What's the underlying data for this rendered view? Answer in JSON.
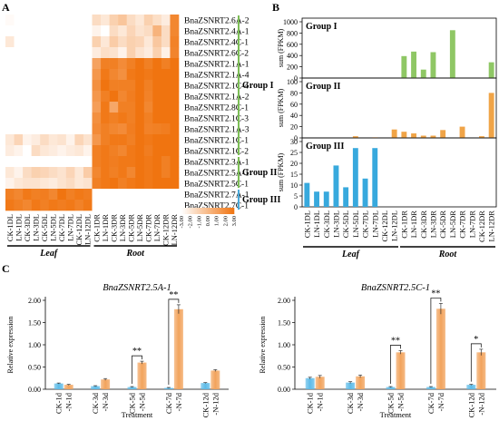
{
  "panel_labels": {
    "a": "A",
    "b": "B",
    "c": "C"
  },
  "chart_data": [
    {
      "type": "heatmap",
      "panel": "A",
      "columns": [
        "CK-1DL",
        "LN-1DL",
        "CK-3DL",
        "LN-3DL",
        "CK-5DL",
        "LN-5DL",
        "CK-7DL",
        "LN-7DL",
        "CK-12DL",
        "LN-12DL",
        "CK-1DR",
        "LN-1DR",
        "CK-3DR",
        "LN-3DR",
        "CK-5DR",
        "LN-5DR",
        "CK-7DR",
        "LN-7DR",
        "CK-12DR",
        "LN-12DR"
      ],
      "rows": [
        "BnaZSNRT2.6A-2",
        "BnaZSNRT2.4A-1",
        "BnaZSNRT2.4C-1",
        "BnaZSNRT2.6C-2",
        "BnaZSNRT2.1A-1",
        "BnaZSNRT2.1A-4",
        "BnaZSNRT2.1C-4",
        "BnaZSNRT2.1A-2",
        "BnaZSNRT2.8C-1",
        "BnaZSNRT2.1C-3",
        "BnaZSNRT2.1A-3",
        "BnaZSNRT2.1C-1",
        "BnaZSNRT2.1C-2",
        "BnaZSNRT2.3A-1",
        "BnaZSNRT2.5A-1",
        "BnaZSNRT2.5C-1",
        "BnaZSNRT2.7A-1",
        "BnaZSNRT2.7C-1"
      ],
      "values": [
        [
          -2.8,
          -3,
          -3,
          -3,
          -3,
          -3,
          -3,
          -3,
          -3,
          -3,
          -1.5,
          -2,
          -1,
          -0.5,
          -1.5,
          -2,
          -1,
          -1.6,
          -2.2,
          2.2
        ],
        [
          -3,
          -3,
          -3,
          -3,
          -3,
          -3,
          -3,
          -3,
          -3,
          -3,
          -2.5,
          -3,
          -1.5,
          -2,
          -1.2,
          -1.8,
          -1.5,
          0.3,
          -1.5,
          2.2
        ],
        [
          -2,
          -3,
          -3,
          -3,
          -3,
          -3,
          -3,
          -3,
          -3,
          -3,
          -1,
          -2,
          -0.8,
          -1.5,
          -1,
          -1.2,
          -2,
          -0.6,
          -1.5,
          2.4
        ],
        [
          -3,
          -3,
          -3,
          -3,
          -3,
          -3,
          -3,
          -3,
          -3,
          -3,
          -2.2,
          -1.6,
          -1.8,
          -2.5,
          -1,
          -1.8,
          -2.2,
          -1,
          -2.4,
          2.3
        ],
        [
          -3,
          -3,
          -3,
          -3,
          -3,
          -3,
          -3,
          -3,
          -3,
          -3,
          1,
          2.5,
          2.5,
          2,
          2.5,
          3,
          2.5,
          3,
          2.5,
          3
        ],
        [
          -3,
          -3,
          -3,
          -3,
          -3,
          -3,
          -3,
          -3,
          -3,
          -3,
          1.5,
          2.8,
          2.2,
          1.8,
          2.8,
          3,
          2.8,
          3,
          3,
          3
        ],
        [
          -3,
          -3,
          -3,
          -3,
          -3,
          -3,
          -3,
          -3,
          -3,
          -3,
          1.8,
          3,
          2.5,
          2.5,
          2.5,
          3,
          2.5,
          3,
          3,
          3
        ],
        [
          -3,
          -3,
          -3,
          -3,
          -3,
          -3,
          -3,
          -3,
          -3,
          -3,
          1.5,
          2.5,
          3,
          2.2,
          2.6,
          3,
          2.4,
          3,
          3,
          3
        ],
        [
          -3,
          -3,
          -3,
          -3,
          -3,
          -3,
          -3,
          -3,
          -3,
          -3,
          1.2,
          2.8,
          0.8,
          2.5,
          2.5,
          3,
          2.2,
          3,
          3,
          3
        ],
        [
          -3,
          -3,
          -3,
          -3,
          -3,
          -3,
          -3,
          -3,
          -3,
          -3,
          1.8,
          2.8,
          2.5,
          2.8,
          2.5,
          3,
          2.5,
          3,
          3,
          3
        ],
        [
          -3,
          -3,
          -3,
          -3,
          -3,
          -3,
          -3,
          -3,
          -3,
          -3,
          2,
          2.5,
          2.2,
          2,
          2.6,
          3,
          2.4,
          2.5,
          2.6,
          3
        ],
        [
          -2,
          -1.2,
          -2.5,
          -2.2,
          -1.5,
          -2,
          -1.8,
          -2.5,
          -1.2,
          -1.8,
          1.5,
          2.5,
          2.8,
          2.8,
          2.5,
          3,
          2.8,
          3,
          3,
          3
        ],
        [
          -2.2,
          -2.5,
          -3,
          -1.5,
          -2,
          -2.2,
          -2.5,
          -2.2,
          -2,
          -2.5,
          2.5,
          2.8,
          2.5,
          2.2,
          2.8,
          3,
          2.6,
          3,
          3,
          3
        ],
        [
          -3,
          -3,
          -3,
          -3,
          -3,
          -3,
          -3,
          -3,
          -3,
          -3,
          2.5,
          2.8,
          2.6,
          2.8,
          2.8,
          3,
          2.8,
          3,
          2.5,
          3
        ],
        [
          -2,
          -2.5,
          -1.5,
          -1,
          -1.2,
          -1.5,
          -1.8,
          -1.2,
          -2,
          -0.8,
          2.2,
          2.8,
          2.5,
          2.8,
          2.2,
          3,
          2.8,
          3,
          2.5,
          3
        ],
        [
          -2.5,
          -2,
          -1.8,
          -1.8,
          -2,
          -2.2,
          -1.8,
          -1.5,
          -2,
          -1.8,
          2.5,
          2.8,
          3,
          2.5,
          2.8,
          3,
          2.8,
          3,
          3,
          3
        ],
        [
          2.5,
          2.2,
          2.8,
          2.5,
          2.6,
          2.2,
          3,
          2.5,
          2.8,
          2.6,
          -3,
          -3,
          -3,
          -3,
          -3,
          -3,
          -3,
          -3,
          -3,
          -3
        ],
        [
          2.8,
          2.5,
          2.2,
          2.8,
          2.5,
          2.8,
          2.6,
          2.8,
          2.4,
          2.8,
          -3,
          -3,
          -3,
          -3,
          -3,
          -3,
          -3,
          -3,
          -3,
          -3
        ]
      ],
      "groups": [
        {
          "name": "Group I",
          "row_start": 0,
          "row_end": 12,
          "color": "#7cbd56"
        },
        {
          "name": "Group II",
          "row_start": 13,
          "row_end": 15,
          "color": "#7cbd56"
        },
        {
          "name": "Group III",
          "row_start": 16,
          "row_end": 17,
          "color": "#4aa8d8"
        }
      ],
      "tissues": [
        {
          "label": "Leaf",
          "col_start": 0,
          "col_end": 9
        },
        {
          "label": "Root",
          "col_start": 10,
          "col_end": 19
        }
      ],
      "color_scale": {
        "min": -3,
        "max": 3,
        "low_color": "#ffffff",
        "high_color": "#f07410",
        "ticks": [
          "-3.00",
          "-2.00",
          "-1.00",
          "0.00",
          "1.00",
          "2.00",
          "3.00"
        ]
      }
    },
    {
      "type": "bar",
      "panel": "B",
      "categories": [
        "CK-1DL",
        "LN-1DL",
        "CK-3DL",
        "LN-3DL",
        "CK-5DL",
        "LN-5DL",
        "CK-7DL",
        "LN-7DL",
        "CK-12DL",
        "LN-12DL",
        "CK-1DR",
        "LN-1DR",
        "CK-3DR",
        "LN-3DR",
        "CK-5DR",
        "LN-5DR",
        "CK-7DR",
        "LN-7DR",
        "CK-12DR",
        "LN-12DR"
      ],
      "ylabel": "sum (FPKM)",
      "groups": [
        {
          "name": "Group I",
          "color": "#8fc765",
          "ylim": [
            0,
            1000
          ],
          "ticks": [
            "0",
            "200",
            "400",
            "600",
            "800",
            "1000"
          ],
          "values": [
            0,
            0,
            0,
            0,
            0,
            0,
            0,
            0,
            0,
            0,
            390,
            470,
            150,
            460,
            0,
            850,
            0,
            0,
            0,
            280
          ]
        },
        {
          "name": "Group II",
          "color": "#f0a447",
          "ylim": [
            0,
            100
          ],
          "ticks": [
            "0",
            "20",
            "40",
            "60",
            "80",
            "100"
          ],
          "values": [
            0,
            0,
            0,
            0,
            0,
            3,
            0,
            1,
            0,
            15,
            11,
            8,
            4,
            4,
            14,
            0,
            20,
            0,
            3,
            80
          ]
        },
        {
          "name": "Group III",
          "color": "#38a9dd",
          "ylim": [
            0,
            30
          ],
          "ticks": [
            "0",
            "5",
            "10",
            "15",
            "20",
            "25",
            "30"
          ],
          "values": [
            11,
            7,
            7,
            19,
            9,
            27,
            13,
            27,
            0,
            0,
            0,
            0,
            0,
            0,
            0,
            0,
            0,
            0,
            0,
            0
          ]
        }
      ],
      "tissues": [
        {
          "label": "Leaf",
          "col_start": 0,
          "col_end": 9
        },
        {
          "label": "Root",
          "col_start": 10,
          "col_end": 19
        }
      ]
    },
    {
      "type": "bar",
      "panel": "C-left",
      "title": "BnaZSNRT2.5A-1",
      "xlabel": "Treatment",
      "ylabel": "Relative expression",
      "ylim": [
        0,
        2.0
      ],
      "yticks": [
        "0.00",
        "0.50",
        "1.00",
        "1.50",
        "2.00"
      ],
      "categories": [
        "CK-1d",
        "-N-1d",
        "CK-3d",
        "-N-3d",
        "CK-5d",
        "-N-5d",
        "CK-7d",
        "-N-7d",
        "CK-12d",
        "-N-12d"
      ],
      "values": [
        0.13,
        0.1,
        0.07,
        0.22,
        0.05,
        0.6,
        0.03,
        1.8,
        0.14,
        0.42
      ],
      "errors": [
        0.01,
        0.01,
        0.01,
        0.02,
        0.01,
        0.03,
        0.01,
        0.1,
        0.01,
        0.02
      ],
      "colors": {
        "CK": "#5dbbe8",
        "N": "#f2a35c"
      },
      "significance": [
        {
          "pair": 2,
          "label": "**"
        },
        {
          "pair": 3,
          "label": "**"
        }
      ]
    },
    {
      "type": "bar",
      "panel": "C-right",
      "title": "BnaZSNRT2.5C-1",
      "xlabel": "Treatment",
      "ylabel": "Relative expression",
      "ylim": [
        0,
        2.0
      ],
      "yticks": [
        "0.00",
        "0.50",
        "1.00",
        "1.50",
        "2.00"
      ],
      "categories": [
        "CK-1d",
        "-N-1d",
        "CK-3d",
        "-N-3d",
        "CK-5d",
        "-N-5d",
        "CK-7d",
        "-N-7d",
        "CK-12d",
        "-N-12d"
      ],
      "values": [
        0.25,
        0.28,
        0.15,
        0.29,
        0.05,
        0.83,
        0.05,
        1.81,
        0.1,
        0.83
      ],
      "errors": [
        0.02,
        0.03,
        0.02,
        0.03,
        0.01,
        0.04,
        0.01,
        0.12,
        0.01,
        0.07
      ],
      "colors": {
        "CK": "#5dbbe8",
        "N": "#f2a35c"
      },
      "significance": [
        {
          "pair": 2,
          "label": "**"
        },
        {
          "pair": 3,
          "label": "**"
        },
        {
          "pair": 4,
          "label": "*"
        }
      ]
    }
  ]
}
